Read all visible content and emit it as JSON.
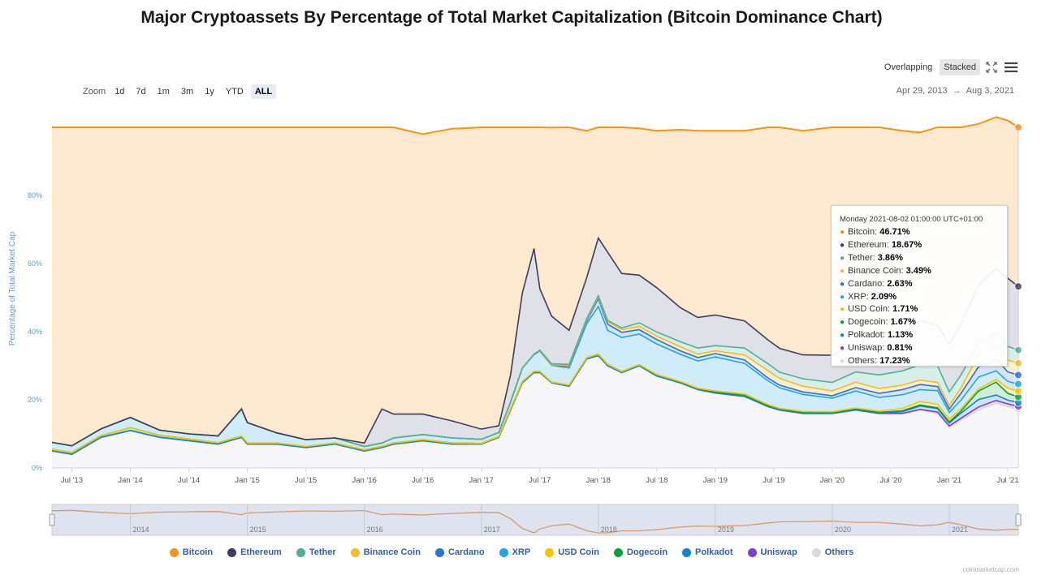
{
  "title": "Major Cryptoassets By Percentage of Total Market Capitalization (Bitcoin Dominance Chart)",
  "zoom": {
    "label": "Zoom",
    "buttons": [
      "1d",
      "7d",
      "1m",
      "3m",
      "1y",
      "YTD",
      "ALL"
    ],
    "active": "ALL"
  },
  "mode": {
    "overlapping": "Overlapping",
    "stacked": "Stacked",
    "active": "Stacked"
  },
  "range": {
    "from": "Apr 29, 2013",
    "arrow": "→",
    "to": "Aug 3, 2021"
  },
  "colors": {
    "Bitcoin": "#f7931a",
    "Ethereum": "#3c3c5d",
    "Tether": "#50af95",
    "Binance Coin": "#f3ba2f",
    "Cardano": "#2a71d0",
    "XRP": "#23a3e8",
    "USD Coin": "#f5c400",
    "Dogecoin": "#0a9e3c",
    "Polkadot": "#1582c9",
    "Uniswap": "#7b3fd0",
    "Others": "#d9d9d9"
  },
  "tooltip": {
    "header": "Monday 2021-08-02 01:00:00 UTC+01:00",
    "rows": [
      {
        "name": "Bitcoin",
        "value": "46.71%"
      },
      {
        "name": "Ethereum",
        "value": "18.67%"
      },
      {
        "name": "Tether",
        "value": "3.86%"
      },
      {
        "name": "Binance Coin",
        "value": "3.49%"
      },
      {
        "name": "Cardano",
        "value": "2.63%"
      },
      {
        "name": "XRP",
        "value": "2.09%"
      },
      {
        "name": "USD Coin",
        "value": "1.71%"
      },
      {
        "name": "Dogecoin",
        "value": "1.67%"
      },
      {
        "name": "Polkadot",
        "value": "1.13%"
      },
      {
        "name": "Uniswap",
        "value": "0.81%"
      },
      {
        "name": "Others",
        "value": "17.23%"
      }
    ]
  },
  "watermark": "coinmarketcap.com",
  "chart_data": {
    "type": "area",
    "stacked": true,
    "title": "Major Cryptoassets By Percentage of Total Market Capitalization (Bitcoin Dominance Chart)",
    "ylabel": "Percentage of Total Market Cap",
    "xlabel": "",
    "ylim": [
      0,
      100
    ],
    "yticks": [
      "0%",
      "20%",
      "40%",
      "60%",
      "80%"
    ],
    "ytick_values": [
      0,
      20,
      40,
      60,
      80
    ],
    "xticks": [
      "Jul '13",
      "Jan '14",
      "Jul '14",
      "Jan '15",
      "Jul '15",
      "Jan '16",
      "Jul '16",
      "Jan '17",
      "Jul '17",
      "Jan '18",
      "Jul '18",
      "Jan '19",
      "Jul '19",
      "Jan '20",
      "Jul '20",
      "Jan '21",
      "Jul '21"
    ],
    "xtick_values": [
      2013.5,
      2014.0,
      2014.5,
      2015.0,
      2015.5,
      2016.0,
      2016.5,
      2017.0,
      2017.5,
      2018.0,
      2018.5,
      2019.0,
      2019.5,
      2020.0,
      2020.5,
      2021.0,
      2021.5
    ],
    "xlim": [
      2013.33,
      2021.59
    ],
    "navigator_years": [
      "2014",
      "2015",
      "2016",
      "2017",
      "2018",
      "2019",
      "2020",
      "2021"
    ],
    "navigator_year_values": [
      2014,
      2015,
      2016,
      2017,
      2018,
      2019,
      2020,
      2021
    ],
    "legend_position": "bottom",
    "grid": true,
    "x": [
      2013.33,
      2013.5,
      2013.75,
      2014.0,
      2014.25,
      2014.5,
      2014.75,
      2014.95,
      2015.0,
      2015.25,
      2015.5,
      2015.75,
      2016.0,
      2016.15,
      2016.25,
      2016.5,
      2016.75,
      2017.0,
      2017.15,
      2017.25,
      2017.35,
      2017.45,
      2017.5,
      2017.6,
      2017.75,
      2017.9,
      2018.0,
      2018.08,
      2018.2,
      2018.35,
      2018.5,
      2018.7,
      2018.85,
      2019.0,
      2019.25,
      2019.45,
      2019.55,
      2019.75,
      2020.0,
      2020.2,
      2020.4,
      2020.6,
      2020.75,
      2020.9,
      2021.0,
      2021.1,
      2021.25,
      2021.4,
      2021.5,
      2021.59
    ],
    "series": [
      {
        "name": "Others",
        "values": [
          5,
          4,
          9,
          11,
          9,
          8,
          7,
          9,
          7,
          7,
          6,
          7,
          5,
          6,
          7,
          8,
          7,
          7,
          9,
          17,
          25,
          28,
          28,
          25,
          24,
          32,
          33,
          30,
          28,
          30,
          27,
          25,
          23,
          22,
          21,
          18,
          17,
          16,
          16,
          17,
          16,
          16,
          17,
          16,
          12,
          14,
          17,
          19,
          18,
          17.23
        ]
      },
      {
        "name": "Uniswap",
        "values": [
          0,
          0,
          0,
          0,
          0,
          0,
          0,
          0,
          0,
          0,
          0,
          0,
          0,
          0,
          0,
          0,
          0,
          0,
          0,
          0,
          0,
          0,
          0,
          0,
          0,
          0,
          0,
          0,
          0,
          0,
          0,
          0,
          0,
          0,
          0,
          0,
          0,
          0,
          0,
          0,
          0,
          0,
          0.2,
          0.4,
          0.3,
          0.6,
          0.9,
          0.8,
          0.8,
          0.81
        ]
      },
      {
        "name": "Polkadot",
        "values": [
          0,
          0,
          0,
          0,
          0,
          0,
          0,
          0,
          0,
          0,
          0,
          0,
          0,
          0,
          0,
          0,
          0,
          0,
          0,
          0,
          0,
          0,
          0,
          0,
          0,
          0,
          0,
          0,
          0,
          0,
          0,
          0,
          0,
          0,
          0,
          0,
          0,
          0,
          0,
          0,
          0,
          0.5,
          1.0,
          1.0,
          0.9,
          1.5,
          2.2,
          1.6,
          1.1,
          1.13
        ]
      },
      {
        "name": "Dogecoin",
        "values": [
          0.5,
          0.5,
          0.5,
          0.8,
          0.6,
          0.5,
          0.4,
          0.3,
          0.3,
          0.3,
          0.3,
          0.3,
          0.3,
          0.3,
          0.3,
          0.3,
          0.3,
          0.2,
          0.2,
          0.3,
          0.3,
          0.3,
          0.3,
          0.2,
          0.3,
          0.3,
          0.4,
          0.4,
          0.3,
          0.3,
          0.4,
          0.3,
          0.3,
          0.3,
          0.4,
          0.3,
          0.3,
          0.3,
          0.3,
          0.3,
          0.3,
          0.3,
          0.3,
          0.3,
          0.3,
          0.6,
          2.5,
          3.8,
          2.0,
          1.67
        ]
      },
      {
        "name": "USD Coin",
        "values": [
          0,
          0,
          0,
          0,
          0,
          0,
          0,
          0,
          0,
          0,
          0,
          0,
          0,
          0,
          0,
          0,
          0,
          0,
          0,
          0,
          0,
          0,
          0,
          0,
          0,
          0,
          0,
          0,
          0,
          0,
          0,
          0.1,
          0.1,
          0.3,
          0.3,
          0.3,
          0.2,
          0.3,
          0.2,
          0.3,
          0.4,
          0.7,
          1.0,
          1.0,
          0.8,
          0.7,
          0.6,
          0.8,
          1.5,
          1.71
        ]
      },
      {
        "name": "XRP",
        "values": [
          2,
          2,
          2,
          3,
          1.5,
          1.5,
          2,
          8,
          6,
          3,
          2,
          1.5,
          1,
          1,
          1.5,
          1.5,
          1.5,
          1.2,
          1.2,
          2,
          4,
          5,
          6,
          5,
          5,
          10,
          14,
          10,
          10,
          9,
          9,
          8,
          8,
          10,
          9,
          7,
          6,
          5,
          4,
          5,
          4,
          4,
          3.5,
          4,
          2,
          2.5,
          3.5,
          2.5,
          2,
          2.09
        ]
      },
      {
        "name": "Cardano",
        "values": [
          0,
          0,
          0,
          0,
          0,
          0,
          0,
          0,
          0,
          0,
          0,
          0,
          0,
          0,
          0,
          0,
          0,
          0,
          0,
          0,
          0,
          0,
          0,
          0,
          0.6,
          0.8,
          2.3,
          1.8,
          1.5,
          1.3,
          1.3,
          1.0,
          1.0,
          1.0,
          1.0,
          0.8,
          0.8,
          0.7,
          0.7,
          1.0,
          1.2,
          1.5,
          1.5,
          1.2,
          1.0,
          2.0,
          3.0,
          3.5,
          2.8,
          2.63
        ]
      },
      {
        "name": "Binance Coin",
        "values": [
          0,
          0,
          0,
          0,
          0,
          0,
          0,
          0,
          0,
          0,
          0,
          0,
          0,
          0,
          0,
          0,
          0,
          0,
          0,
          0,
          0,
          0.1,
          0.1,
          0.1,
          0.2,
          0.3,
          0.5,
          0.7,
          0.8,
          1.0,
          1.0,
          1.2,
          1.0,
          0.8,
          1.5,
          2.2,
          2.0,
          1.7,
          1.4,
          1.6,
          1.4,
          1.3,
          1.3,
          1.2,
          1.0,
          1.6,
          3.5,
          4.0,
          3.5,
          3.49
        ]
      },
      {
        "name": "Tether",
        "values": [
          0,
          0,
          0,
          0,
          0,
          0,
          0,
          0,
          0,
          0,
          0,
          0,
          0,
          0,
          0,
          0,
          0,
          0,
          0,
          0,
          0,
          0,
          0.2,
          0.3,
          0.3,
          0.4,
          0.3,
          0.4,
          0.5,
          1.0,
          1.2,
          1.5,
          1.8,
          1.5,
          2.0,
          2.0,
          1.8,
          2.2,
          2.5,
          3.0,
          4.0,
          4.2,
          4.5,
          4.8,
          4.0,
          3.8,
          3.4,
          3.6,
          4.0,
          3.86
        ]
      },
      {
        "name": "Ethereum",
        "values": [
          0,
          0,
          0,
          0,
          0,
          0,
          0,
          0,
          0,
          0,
          0,
          0,
          1,
          10,
          7,
          6,
          5,
          3,
          2,
          8,
          22,
          31,
          18,
          14,
          10,
          12,
          17,
          20,
          16,
          14,
          13,
          10,
          9,
          9,
          8,
          7,
          7,
          7,
          8,
          8,
          9,
          11,
          13,
          12,
          14,
          15,
          17,
          19,
          20,
          18.67
        ]
      },
      {
        "name": "Bitcoin",
        "values": [
          92.5,
          93.5,
          88.5,
          85.2,
          88.9,
          90,
          90.6,
          82.7,
          86.7,
          89.7,
          91.7,
          91.2,
          92.7,
          82.7,
          84.2,
          82.2,
          85.8,
          88.6,
          87.6,
          72.7,
          48.7,
          35.6,
          47.4,
          55.3,
          59.6,
          43.2,
          32.5,
          36.7,
          42.9,
          43.1,
          46.1,
          52.2,
          54.8,
          54.1,
          55.8,
          62.4,
          64.9,
          65.8,
          66.9,
          63.8,
          63.7,
          59.5,
          55.2,
          58.1,
          63.7,
          57.7,
          47.4,
          44.4,
          46.3,
          46.71
        ]
      }
    ]
  }
}
